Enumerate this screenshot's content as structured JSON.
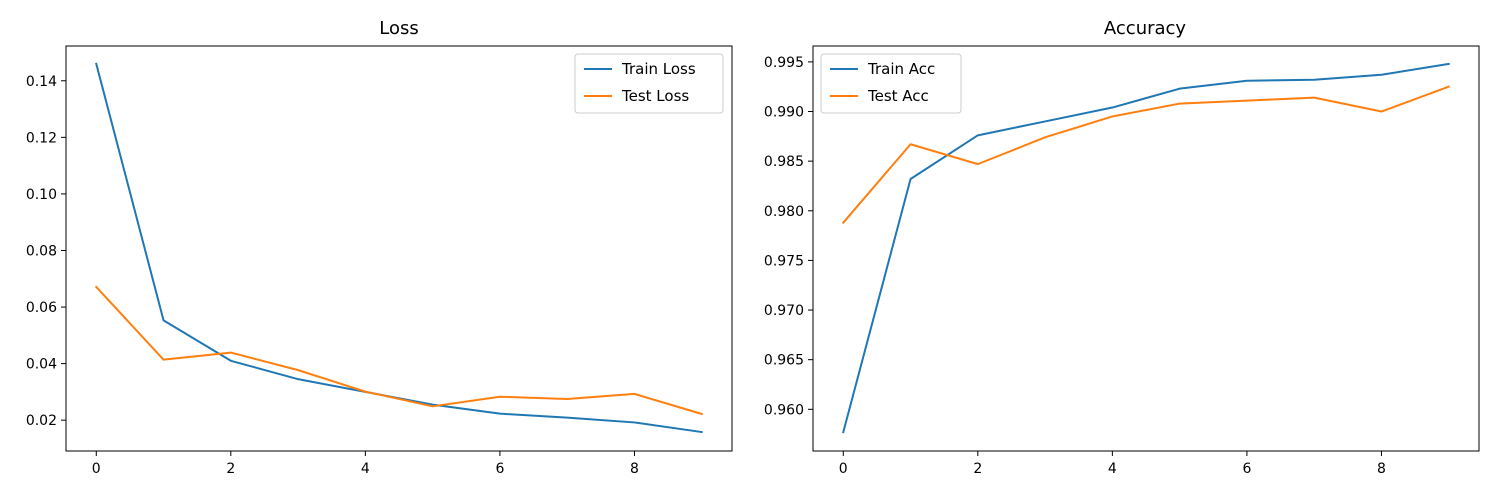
{
  "chart_data": [
    {
      "type": "line",
      "title": "Loss",
      "xlabel": "",
      "ylabel": "",
      "x": [
        0,
        1,
        2,
        3,
        4,
        5,
        6,
        7,
        8,
        9
      ],
      "xlim": [
        -0.45,
        9.45
      ],
      "ylim": [
        0.0091,
        0.1523
      ],
      "xticks": [
        0,
        2,
        4,
        6,
        8
      ],
      "yticks": [
        0.02,
        0.04,
        0.06,
        0.08,
        0.1,
        0.12,
        0.14
      ],
      "ytick_decimals": 2,
      "grid": false,
      "legend_position": "upper right",
      "series": [
        {
          "name": "Train Loss",
          "color": "#1f77b4",
          "values": [
            0.146,
            0.0553,
            0.041,
            0.0345,
            0.03,
            0.0255,
            0.0223,
            0.0209,
            0.0192,
            0.0158
          ]
        },
        {
          "name": "Test Loss",
          "color": "#ff7f0e",
          "values": [
            0.0671,
            0.0414,
            0.0439,
            0.0377,
            0.0301,
            0.0249,
            0.0283,
            0.0275,
            0.0293,
            0.0222
          ]
        }
      ]
    },
    {
      "type": "line",
      "title": "Accuracy",
      "xlabel": "",
      "ylabel": "",
      "x": [
        0,
        1,
        2,
        3,
        4,
        5,
        6,
        7,
        8,
        9
      ],
      "xlim": [
        -0.45,
        9.45
      ],
      "ylim": [
        0.9558,
        0.9966
      ],
      "xticks": [
        0,
        2,
        4,
        6,
        8
      ],
      "yticks": [
        0.96,
        0.965,
        0.97,
        0.975,
        0.98,
        0.985,
        0.99,
        0.995
      ],
      "ytick_decimals": 3,
      "grid": false,
      "legend_position": "upper left",
      "series": [
        {
          "name": "Train Acc",
          "color": "#1f77b4",
          "values": [
            0.9577,
            0.9832,
            0.9876,
            0.989,
            0.9904,
            0.9923,
            0.9931,
            0.9932,
            0.9937,
            0.9948
          ]
        },
        {
          "name": "Test Acc",
          "color": "#ff7f0e",
          "values": [
            0.9788,
            0.9867,
            0.9847,
            0.9874,
            0.9895,
            0.9908,
            0.9911,
            0.9914,
            0.99,
            0.9925
          ]
        }
      ]
    }
  ]
}
